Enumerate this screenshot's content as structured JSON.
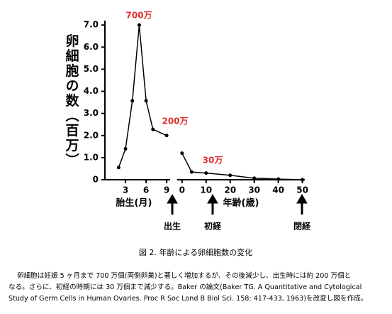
{
  "chart_data": [
    {
      "type": "line",
      "ylabel": "卵細胞の数（百万）",
      "xlabel": "胎生(月)",
      "x": [
        2,
        3,
        4,
        5,
        6,
        7,
        9
      ],
      "values": [
        0.55,
        1.4,
        3.57,
        7.0,
        3.57,
        2.28,
        2.0
      ],
      "xlim": [
        0,
        9.5
      ],
      "xticks": [
        3,
        6,
        9
      ],
      "ylim": [
        0,
        7.2
      ],
      "yticks": [
        0,
        {
          "value": 1,
          "label": "1.0"
        },
        {
          "value": 2,
          "label": "2.0"
        },
        {
          "value": 3,
          "label": "3.0"
        },
        {
          "value": 4,
          "label": "4.0"
        },
        {
          "value": 5,
          "label": "5.0"
        },
        {
          "value": 6,
          "label": "6.0"
        },
        {
          "value": 7,
          "label": "7.0"
        }
      ],
      "annotations": [
        "700万",
        "200万"
      ],
      "color": "#000000"
    },
    {
      "type": "line",
      "xlabel": "年齢(歳)",
      "x": [
        0,
        4,
        10,
        20,
        30,
        40,
        50
      ],
      "values": [
        1.2,
        0.35,
        0.3,
        0.2,
        0.07,
        0.03,
        0
      ],
      "xlim": [
        -2,
        51
      ],
      "xticks": [
        0,
        10,
        20,
        30,
        40,
        50
      ],
      "annotations": [
        "30万"
      ],
      "events": [
        "出生",
        "初経",
        "閉経"
      ],
      "color": "#000000"
    }
  ],
  "caption": "図 2. 年齢による卵細胞数の変化",
  "description": [
    "卵細胞は妊娠 5 ヶ月まで 700 万個(両側卵巣)と著しく増加するが、その後減少し、出生時には約 200 万個と",
    "なる。さらに、初経の時期には 30 万個まで減少する。Baker の論文(Baker TG. A Quantitative and Cytological",
    "Study of Germ Cells in Human Ovaries. Proc R Soc Lond B Biol Sci. 158: 417-433, 1963)を改変し図を作成。"
  ]
}
